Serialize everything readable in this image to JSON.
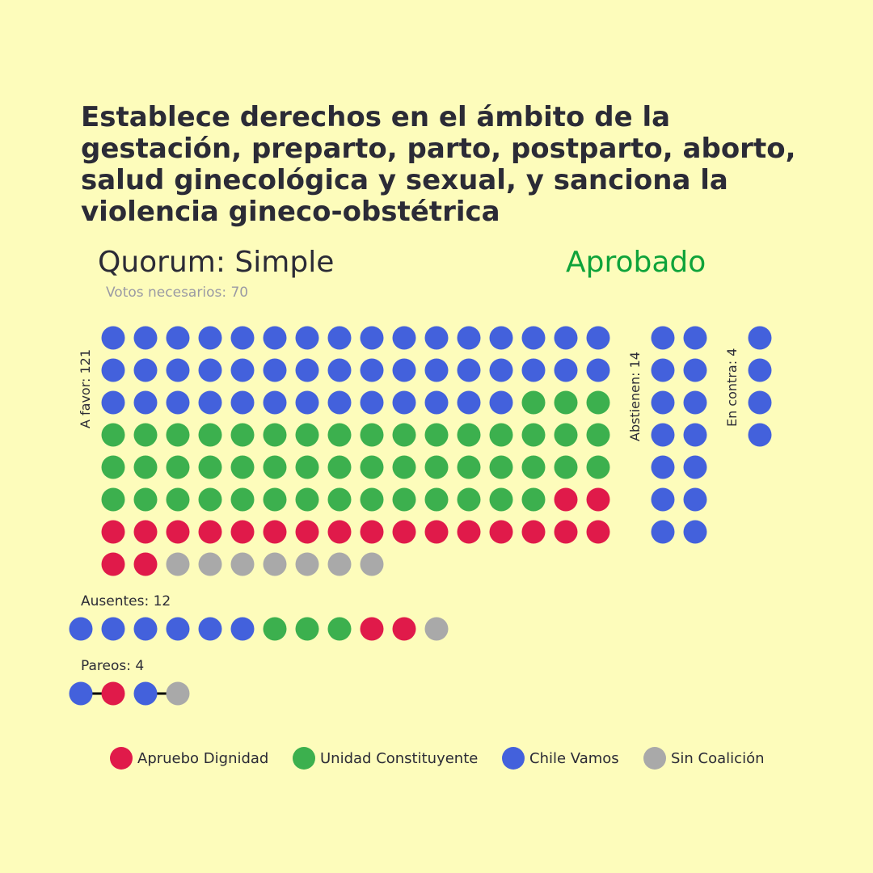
{
  "title": "Establece derechos en el ámbito de la gestación, preparto, parto, postparto, aborto, salud ginecológica y sexual, y sanciona la violencia gineco-obstétrica",
  "quorum": "Quorum: Simple",
  "result": "Aprobado",
  "result_color": "#0fa33a",
  "votes_needed": "Votos necesarios: 70",
  "colors": {
    "AD": "#e01a4a",
    "UC": "#3cb04e",
    "CV": "#4361dc",
    "SC": "#a9a9a9"
  },
  "labels": {
    "favor": "A favor: 121",
    "abstain": "Abstienen: 14",
    "against": "En contra: 4",
    "absent": "Ausentes: 12",
    "paired": "Pareos: 4"
  },
  "legend": [
    {
      "label": "Apruebo Dignidad",
      "key": "AD"
    },
    {
      "label": "Unidad Constituyente",
      "key": "UC"
    },
    {
      "label": "Chile Vamos",
      "key": "CV"
    },
    {
      "label": "Sin Coalición",
      "key": "SC"
    }
  ],
  "chart_data": {
    "type": "waffle",
    "groups": [
      {
        "label": "A favor: 121",
        "total": 121,
        "counts": {
          "CV": 45,
          "UC": 49,
          "AD": 20,
          "SC": 7
        }
      },
      {
        "label": "Abstienen: 14",
        "total": 14,
        "counts": {
          "CV": 14
        }
      },
      {
        "label": "En contra: 4",
        "total": 4,
        "counts": {
          "CV": 4
        }
      },
      {
        "label": "Ausentes: 12",
        "total": 12,
        "counts": {
          "UC": 3,
          "CV": 6,
          "AD": 2,
          "SC": 1
        }
      },
      {
        "label": "Pareos: 4",
        "total": 4,
        "pairs": [
          [
            "CV",
            "AD"
          ],
          [
            "CV",
            "SC"
          ]
        ]
      }
    ]
  }
}
